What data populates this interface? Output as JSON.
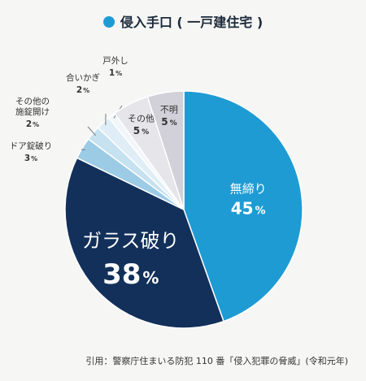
{
  "title": "侵入手口 ( 一戸建住宅 )",
  "accent_color": "#1f9bd4",
  "citation": "引用：警察庁住まいる防犯 110 番「侵入犯罪の脅威」(令和元年)",
  "chart_data": {
    "type": "pie",
    "title": "侵入手口 ( 一戸建住宅 )",
    "start": "12 o'clock",
    "direction": "clockwise",
    "slices": [
      {
        "label": "無締り",
        "value": 45,
        "display": "45",
        "unit": "%",
        "color": "#1f9bd4",
        "label_position": "inside"
      },
      {
        "label": "ガラス破り",
        "value": 38,
        "display": "38",
        "unit": "%",
        "color": "#12305a",
        "label_position": "inside"
      },
      {
        "label": "ドア錠破り",
        "value": 3,
        "display": "3",
        "unit": "%",
        "color": "#9ccbe6",
        "label_position": "outside"
      },
      {
        "label": "その他の\n施錠開け",
        "value": 2,
        "display": "2",
        "unit": "%",
        "color": "#c6e1f0",
        "label_position": "outside"
      },
      {
        "label": "合いかぎ",
        "value": 2,
        "display": "2",
        "unit": "%",
        "color": "#dfeef6",
        "label_position": "outside"
      },
      {
        "label": "戸外し",
        "value": 1,
        "display": "1",
        "unit": "%",
        "color": "#f2f6f9",
        "label_position": "outside"
      },
      {
        "label": "その他",
        "value": 5,
        "display": "5",
        "unit": "%",
        "color": "#e5e5ea",
        "label_position": "inside"
      },
      {
        "label": "不明",
        "value": 5,
        "display": "5",
        "unit": "%",
        "color": "#d2d0d8",
        "label_position": "inside"
      }
    ]
  }
}
